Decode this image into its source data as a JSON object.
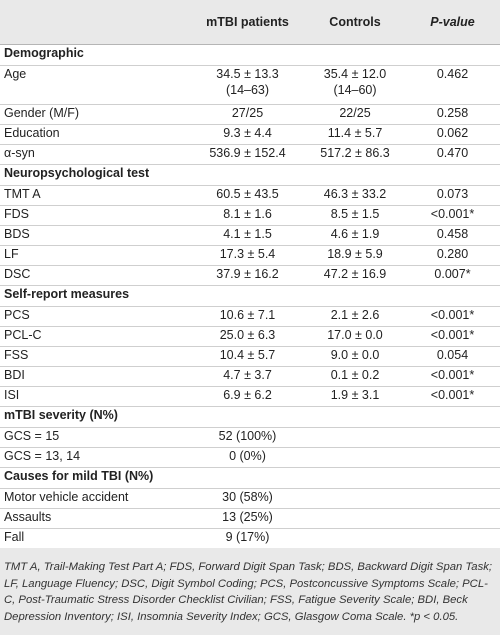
{
  "header": {
    "col_label": "",
    "col_mtbi": "mTBI patients",
    "col_controls": "Controls",
    "col_p": "P-value"
  },
  "sections": [
    {
      "title": "Demographic",
      "rows": [
        {
          "label": "Age",
          "mtbi": "34.5 ± 13.3",
          "mtbi_sub": "(14–63)",
          "controls": "35.4 ± 12.0",
          "controls_sub": "(14–60)",
          "p": "0.462"
        },
        {
          "label": "Gender (M/F)",
          "mtbi": "27/25",
          "controls": "22/25",
          "p": "0.258"
        },
        {
          "label": "Education",
          "mtbi": "9.3 ± 4.4",
          "controls": "11.4 ± 5.7",
          "p": "0.062"
        },
        {
          "label": "α-syn",
          "mtbi": "536.9 ± 152.4",
          "controls": "517.2 ± 86.3",
          "p": "0.470"
        }
      ]
    },
    {
      "title": "Neuropsychological test",
      "rows": [
        {
          "label": "TMT A",
          "mtbi": "60.5 ± 43.5",
          "controls": "46.3 ± 33.2",
          "p": "0.073"
        },
        {
          "label": "FDS",
          "mtbi": "8.1 ± 1.6",
          "controls": "8.5 ± 1.5",
          "p": "<0.001*"
        },
        {
          "label": "BDS",
          "mtbi": "4.1 ± 1.5",
          "controls": "4.6 ± 1.9",
          "p": "0.458"
        },
        {
          "label": "LF",
          "mtbi": "17.3 ± 5.4",
          "controls": "18.9 ± 5.9",
          "p": "0.280"
        },
        {
          "label": "DSC",
          "mtbi": "37.9 ± 16.2",
          "controls": "47.2 ± 16.9",
          "p": "0.007*"
        }
      ]
    },
    {
      "title": "Self-report measures",
      "rows": [
        {
          "label": "PCS",
          "mtbi": "10.6 ± 7.1",
          "controls": "2.1 ± 2.6",
          "p": "<0.001*"
        },
        {
          "label": "PCL-C",
          "mtbi": "25.0 ± 6.3",
          "controls": "17.0 ± 0.0",
          "p": "<0.001*"
        },
        {
          "label": "FSS",
          "mtbi": "10.4 ± 5.7",
          "controls": "9.0 ± 0.0",
          "p": "0.054"
        },
        {
          "label": "BDI",
          "mtbi": "4.7 ± 3.7",
          "controls": "0.1 ± 0.2",
          "p": "<0.001*"
        },
        {
          "label": "ISI",
          "mtbi": "6.9 ± 6.2",
          "controls": "1.9 ± 3.1",
          "p": "<0.001*"
        }
      ]
    },
    {
      "title": "mTBI severity (N%)",
      "rows": [
        {
          "label": "GCS = 15",
          "mtbi": "52 (100%)",
          "controls": "",
          "p": ""
        },
        {
          "label": "GCS = 13, 14",
          "mtbi": "0 (0%)",
          "controls": "",
          "p": ""
        }
      ]
    },
    {
      "title": "Causes for mild TBI (N%)",
      "rows": [
        {
          "label": "Motor vehicle accident",
          "mtbi": "30 (58%)",
          "controls": "",
          "p": ""
        },
        {
          "label": "Assaults",
          "mtbi": "13 (25%)",
          "controls": "",
          "p": ""
        },
        {
          "label": "Fall",
          "mtbi": "9 (17%)",
          "controls": "",
          "p": ""
        }
      ]
    }
  ],
  "footnote": "TMT A, Trail-Making Test Part A; FDS, Forward Digit Span Task; BDS, Backward Digit Span Task; LF, Language Fluency; DSC, Digit Symbol Coding; PCS, Postconcussive Symptoms Scale; PCL-C, Post-Traumatic Stress Disorder Checklist Civilian; FSS, Fatigue Severity Scale; BDI, Beck Depression Inventory; ISI, Insomnia Severity Index; GCS, Glasgow Coma Scale. *p < 0.05."
}
